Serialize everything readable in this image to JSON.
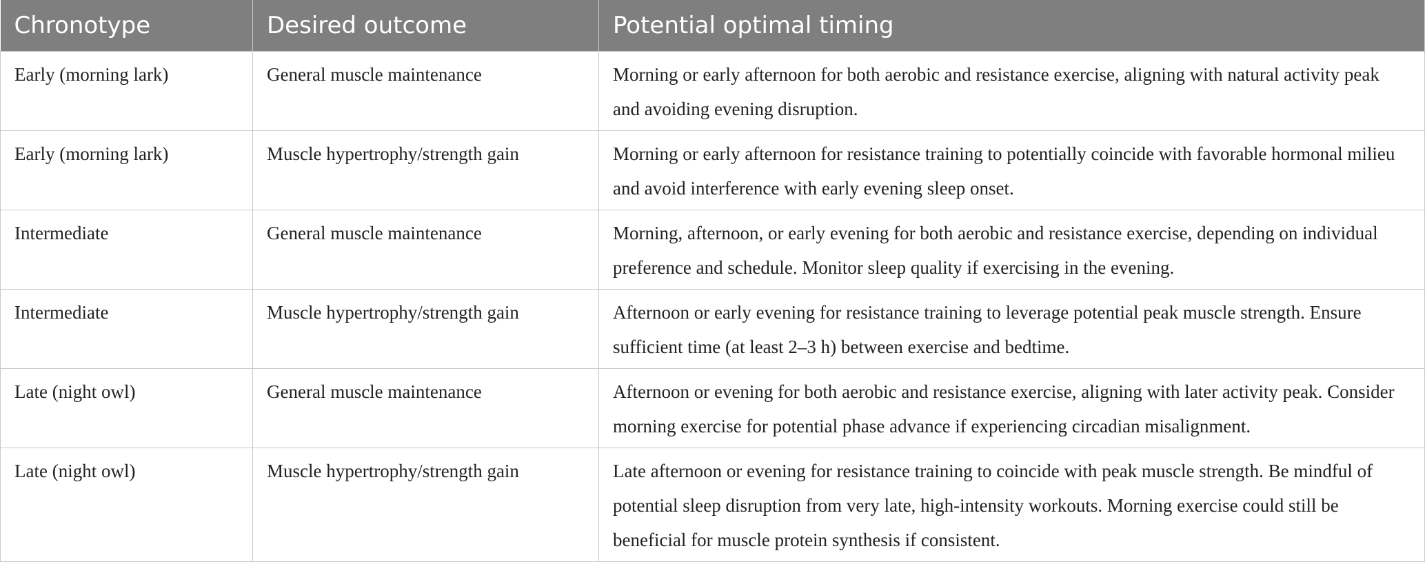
{
  "table": {
    "header": [
      "Chronotype",
      "Desired outcome",
      "Potential optimal timing"
    ],
    "rows": [
      [
        "Early (morning lark)",
        "General muscle maintenance",
        "Morning or early afternoon for both aerobic and resistance exercise, aligning with natural activity peak and avoiding evening disruption."
      ],
      [
        "Early (morning lark)",
        "Muscle hypertrophy/strength gain",
        "Morning or early afternoon for resistance training to potentially coincide with favorable hormonal milieu and avoid interference with early evening sleep onset."
      ],
      [
        "Intermediate",
        "General muscle maintenance",
        "Morning, afternoon, or early evening for both aerobic and resistance exercise, depending on individual preference and schedule. Monitor sleep quality if exercising in the evening."
      ],
      [
        "Intermediate",
        "Muscle hypertrophy/strength gain",
        "Afternoon or early evening for resistance training to leverage potential peak muscle strength. Ensure sufficient time (at least 2–3 h) between exercise and bedtime."
      ],
      [
        "Late (night owl)",
        "General muscle maintenance",
        "Afternoon or evening for both aerobic and resistance exercise, aligning with later activity peak. Consider morning exercise for potential phase advance if experiencing circadian misalignment."
      ],
      [
        "Late (night owl)",
        "Muscle hypertrophy/strength gain",
        "Late afternoon or evening for resistance training to coincide with peak muscle strength. Be mindful of potential sleep disruption from very late, high-intensity workouts. Morning exercise could still be beneficial for muscle protein synthesis if consistent."
      ]
    ]
  }
}
